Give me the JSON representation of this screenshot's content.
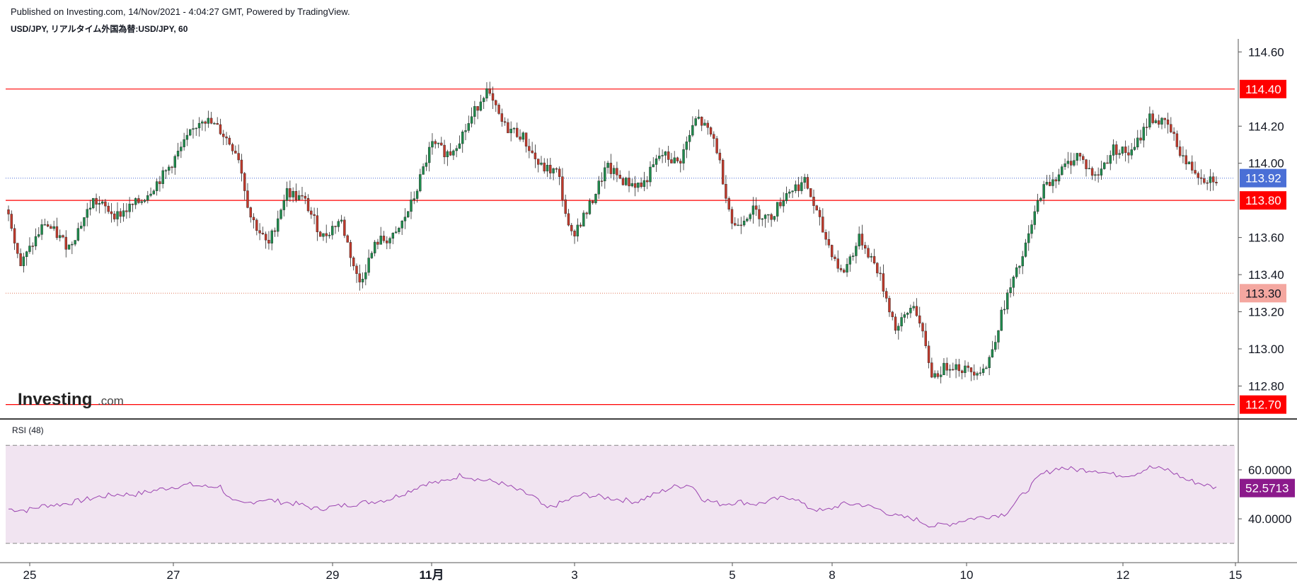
{
  "header": {
    "published": "Published on Investing.com, 14/Nov/2021 - 4:04:27 GMT, Powered by TradingView.",
    "symbol": "USD/JPY, リアルタイム外国為替:USD/JPY, 60"
  },
  "logo": {
    "text": "Investing",
    "suffix": ".com"
  },
  "rsi_label": "RSI (48)",
  "colors": {
    "up": "#26a69a",
    "up_body": "#1e8a4c",
    "down": "#c0392b",
    "level_line": "#ff0000",
    "current_line": "#4a6fd6",
    "rsi_fill": "#f1e4f1",
    "rsi_line": "#9b44b0",
    "rsi_tag": "#8b1a8b"
  },
  "chart_data": [
    {
      "type": "candlestick",
      "title": "USD/JPY, リアルタイム外国為替:USD/JPY, 60",
      "x_tick_labels": [
        "25",
        "27",
        "29",
        "11月",
        "3",
        "5",
        "8",
        "10",
        "12",
        "15"
      ],
      "y_ticks": [
        "114.60",
        "114.20",
        "114.00",
        "113.60",
        "113.40",
        "113.20",
        "113.00",
        "112.80"
      ],
      "ylim": [
        112.63,
        114.67
      ],
      "horizontal_levels": [
        {
          "value": "114.40",
          "style": "solid"
        },
        {
          "value": "113.80",
          "style": "solid"
        },
        {
          "value": "112.70",
          "style": "solid"
        },
        {
          "value": "113.30",
          "style": "dotted"
        }
      ],
      "current_price": "113.92",
      "close_path": [
        [
          0,
          113.75
        ],
        [
          2,
          113.45
        ],
        [
          6,
          113.68
        ],
        [
          10,
          113.55
        ],
        [
          14,
          113.8
        ],
        [
          18,
          113.72
        ],
        [
          22,
          113.8
        ],
        [
          26,
          113.95
        ],
        [
          29,
          114.1
        ],
        [
          32,
          114.25
        ],
        [
          35,
          114.18
        ],
        [
          38,
          114.05
        ],
        [
          40,
          113.72
        ],
        [
          43,
          113.55
        ],
        [
          46,
          113.85
        ],
        [
          49,
          113.8
        ],
        [
          52,
          113.6
        ],
        [
          55,
          113.7
        ],
        [
          58,
          113.35
        ],
        [
          61,
          113.58
        ],
        [
          64,
          113.6
        ],
        [
          67,
          113.8
        ],
        [
          70,
          114.1
        ],
        [
          73,
          114.05
        ],
        [
          76,
          114.2
        ],
        [
          79,
          114.4
        ],
        [
          82,
          114.2
        ],
        [
          85,
          114.15
        ],
        [
          88,
          113.98
        ],
        [
          91,
          113.95
        ],
        [
          93,
          113.6
        ],
        [
          96,
          113.75
        ],
        [
          99,
          113.98
        ],
        [
          102,
          113.9
        ],
        [
          105,
          113.88
        ],
        [
          108,
          114.05
        ],
        [
          111,
          114.0
        ],
        [
          114,
          114.25
        ],
        [
          117,
          114.12
        ],
        [
          120,
          113.65
        ],
        [
          123,
          113.75
        ],
        [
          126,
          113.7
        ],
        [
          129,
          113.85
        ],
        [
          132,
          113.9
        ],
        [
          135,
          113.62
        ],
        [
          138,
          113.4
        ],
        [
          141,
          113.6
        ],
        [
          144,
          113.42
        ],
        [
          147,
          113.1
        ],
        [
          150,
          113.25
        ],
        [
          153,
          112.85
        ],
        [
          156,
          112.92
        ],
        [
          159,
          112.88
        ],
        [
          162,
          112.9
        ],
        [
          165,
          113.25
        ],
        [
          168,
          113.5
        ],
        [
          171,
          113.85
        ],
        [
          174,
          113.95
        ],
        [
          177,
          114.05
        ],
        [
          180,
          113.92
        ],
        [
          183,
          114.08
        ],
        [
          186,
          114.05
        ],
        [
          189,
          114.25
        ],
        [
          192,
          114.2
        ],
        [
          195,
          114.0
        ],
        [
          198,
          113.92
        ],
        [
          200,
          113.92
        ]
      ]
    },
    {
      "type": "line",
      "title": "RSI (48)",
      "y_ticks": [
        "60.0000",
        "40.0000"
      ],
      "ylim": [
        25,
        75
      ],
      "current_value": "52.5713",
      "values_path": [
        [
          0,
          44
        ],
        [
          3,
          43.5
        ],
        [
          6,
          45.5
        ],
        [
          9,
          46
        ],
        [
          12,
          47.5
        ],
        [
          15,
          49
        ],
        [
          18,
          50
        ],
        [
          21,
          50
        ],
        [
          24,
          51.5
        ],
        [
          27,
          53
        ],
        [
          30,
          54
        ],
        [
          33,
          53
        ],
        [
          35,
          53.5
        ],
        [
          37,
          47
        ],
        [
          39,
          46
        ],
        [
          42,
          48
        ],
        [
          45,
          47
        ],
        [
          48,
          46
        ],
        [
          51,
          44
        ],
        [
          54,
          45
        ],
        [
          57,
          46
        ],
        [
          60,
          47
        ],
        [
          63,
          48
        ],
        [
          66,
          51
        ],
        [
          69,
          54.5
        ],
        [
          72,
          55
        ],
        [
          75,
          58
        ],
        [
          78,
          56
        ],
        [
          81,
          55
        ],
        [
          84,
          52
        ],
        [
          87,
          49
        ],
        [
          89,
          44
        ],
        [
          92,
          47
        ],
        [
          95,
          50
        ],
        [
          98,
          49
        ],
        [
          101,
          48
        ],
        [
          104,
          47
        ],
        [
          107,
          50
        ],
        [
          110,
          53
        ],
        [
          113,
          54
        ],
        [
          115,
          48
        ],
        [
          118,
          46
        ],
        [
          121,
          47
        ],
        [
          124,
          46
        ],
        [
          127,
          48
        ],
        [
          130,
          49
        ],
        [
          132,
          45
        ],
        [
          135,
          43
        ],
        [
          138,
          46
        ],
        [
          141,
          46
        ],
        [
          144,
          44
        ],
        [
          147,
          41
        ],
        [
          150,
          40
        ],
        [
          153,
          37
        ],
        [
          156,
          38
        ],
        [
          159,
          40
        ],
        [
          162,
          41
        ],
        [
          165,
          42
        ],
        [
          168,
          50
        ],
        [
          171,
          58
        ],
        [
          174,
          61
        ],
        [
          177,
          60
        ],
        [
          180,
          60
        ],
        [
          183,
          58
        ],
        [
          186,
          58
        ],
        [
          189,
          61
        ],
        [
          192,
          60
        ],
        [
          195,
          56
        ],
        [
          198,
          54
        ],
        [
          200,
          52.57
        ]
      ]
    }
  ]
}
